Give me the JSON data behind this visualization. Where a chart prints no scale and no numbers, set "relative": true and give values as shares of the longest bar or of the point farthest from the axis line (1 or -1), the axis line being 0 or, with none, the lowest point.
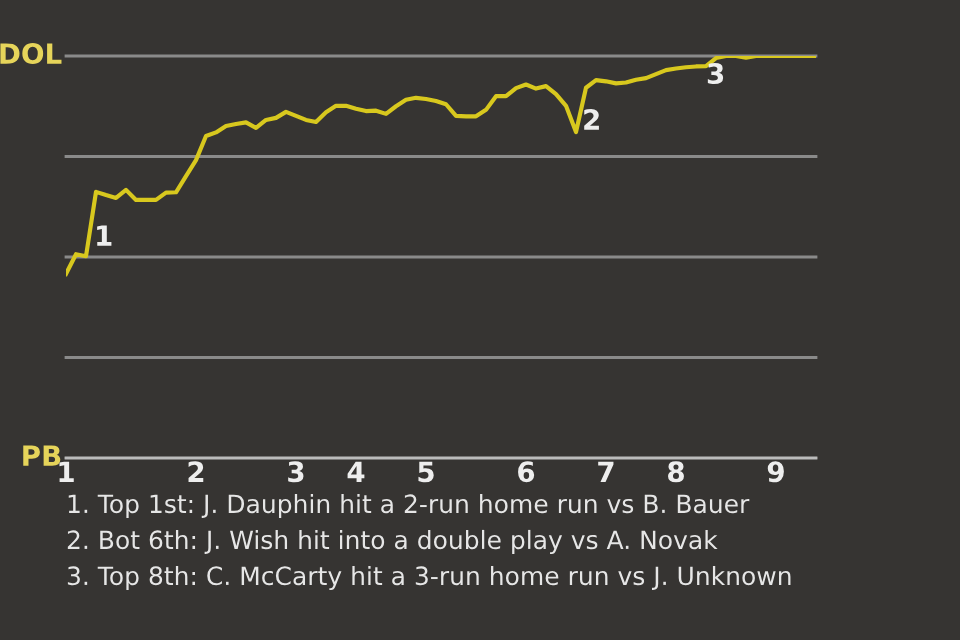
{
  "chart_data": {
    "type": "line",
    "relative": true,
    "categories": [
      "1",
      null,
      null,
      null,
      null,
      null,
      null,
      null,
      null,
      null,
      null,
      null,
      null,
      "2",
      null,
      null,
      null,
      null,
      null,
      null,
      null,
      null,
      null,
      "3",
      null,
      null,
      null,
      null,
      null,
      "4",
      null,
      null,
      null,
      null,
      null,
      null,
      "5",
      null,
      null,
      null,
      null,
      null,
      null,
      null,
      null,
      null,
      "6",
      null,
      null,
      null,
      null,
      null,
      null,
      null,
      "7",
      null,
      null,
      null,
      null,
      null,
      null,
      "8",
      null,
      null,
      null,
      null,
      null,
      null,
      null,
      null,
      null,
      "9",
      null,
      null,
      null,
      null
    ],
    "series": [
      {
        "color": "#d8c81e",
        "values": [
          0.458,
          0.507,
          0.502,
          0.662,
          0.654,
          0.647,
          0.667,
          0.642,
          0.642,
          0.642,
          0.66,
          0.661,
          0.701,
          0.741,
          0.801,
          0.81,
          0.826,
          0.831,
          0.835,
          0.821,
          0.841,
          0.846,
          0.861,
          0.851,
          0.841,
          0.836,
          0.86,
          0.876,
          0.876,
          0.869,
          0.863,
          0.864,
          0.856,
          0.875,
          0.891,
          0.896,
          0.893,
          0.888,
          0.88,
          0.851,
          0.85,
          0.85,
          0.866,
          0.9,
          0.9,
          0.92,
          0.929,
          0.919,
          0.925,
          0.905,
          0.876,
          0.811,
          0.921,
          0.94,
          0.937,
          0.932,
          0.934,
          0.941,
          0.945,
          0.955,
          0.965,
          0.969,
          0.972,
          0.974,
          0.975,
          0.995,
          1,
          1,
          0.996,
          1,
          1,
          1,
          1,
          1,
          1,
          1
        ]
      }
    ],
    "marker": "none",
    "line_style": "solid",
    "ref_lines": [
      {
        "axis": "y",
        "value": 1,
        "label": "DOL",
        "color": "#8a8a8a"
      },
      {
        "axis": "y",
        "value": 0.75,
        "label": null,
        "color": "#8a8a8a"
      },
      {
        "axis": "y",
        "value": 0.5,
        "label": null,
        "color": "#8a8a8a"
      },
      {
        "axis": "y",
        "value": 0.25,
        "label": null,
        "color": "#8a8a8a"
      },
      {
        "axis": "y",
        "value": 0,
        "label": "PB",
        "color": "#bbbbbb"
      }
    ],
    "annotations": [
      "1",
      "2",
      "3",
      "1. Top 1st: J. Dauphin hit a 2-run home run vs B. Bauer",
      "2. Bot 6th: J. Wish hit into a double play vs A. Novak",
      "3. Top 8th: C. McCarty hit a 3-run home run vs J. Unknown"
    ]
  }
}
